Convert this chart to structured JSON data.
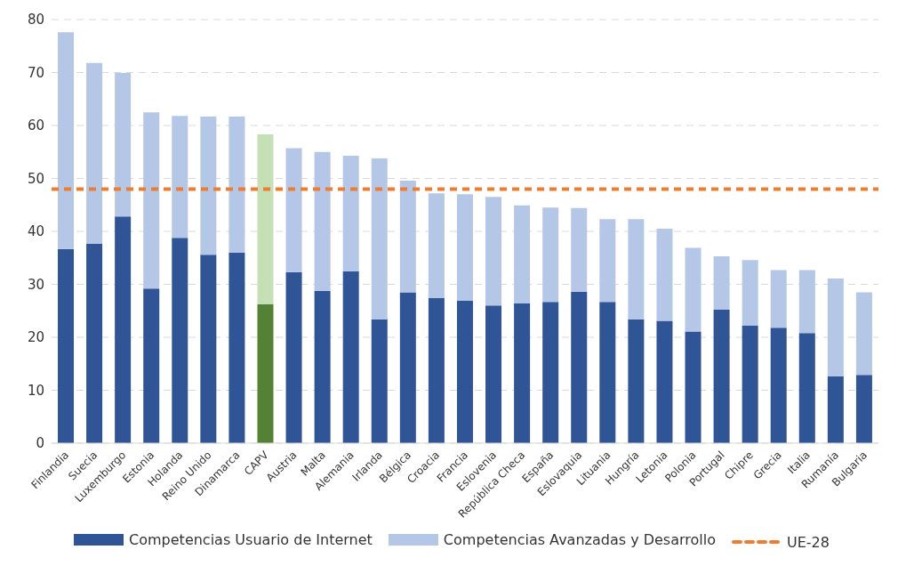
{
  "chart_data": {
    "type": "bar",
    "stacked": true,
    "categories": [
      "Finlandia",
      "Suecia",
      "Luxemburgo",
      "Estonia",
      "Holanda",
      "Reino Unido",
      "Dinamarca",
      "CAPV",
      "Austria",
      "Malta",
      "Alemania",
      "Irlanda",
      "Bélgica",
      "Croacia",
      "Francia",
      "Eslovenia",
      "República Checa",
      "España",
      "Eslovaquia",
      "Lituania",
      "Hungría",
      "Letonia",
      "Polonia",
      "Portugal",
      "Chipre",
      "Grecia",
      "Italia",
      "Rumanía",
      "Bulgaria"
    ],
    "series": [
      {
        "name": "Competencias Usuario de Internet",
        "color": "#2f5597",
        "colors": [
          "#2f5597",
          "#2f5597",
          "#2f5597",
          "#2f5597",
          "#2f5597",
          "#2f5597",
          "#2f5597",
          "#548235",
          "#2f5597",
          "#2f5597",
          "#2f5597",
          "#2f5597",
          "#2f5597",
          "#2f5597",
          "#2f5597",
          "#2f5597",
          "#2f5597",
          "#2f5597",
          "#2f5597",
          "#2f5597",
          "#2f5597",
          "#2f5597",
          "#2f5597",
          "#2f5597",
          "#2f5597",
          "#2f5597",
          "#2f5597",
          "#2f5597",
          "#2f5597"
        ],
        "values": [
          36.7,
          37.7,
          42.8,
          29.2,
          38.8,
          35.6,
          36.0,
          26.2,
          32.3,
          28.8,
          32.5,
          23.4,
          28.5,
          27.4,
          26.9,
          26.0,
          26.4,
          26.7,
          28.6,
          26.7,
          23.4,
          23.1,
          21.1,
          25.2,
          22.2,
          21.8,
          20.8,
          12.6,
          12.9
        ]
      },
      {
        "name": "Competencias Avanzadas y Desarrollo",
        "color": "#b4c7e7",
        "colors": [
          "#b4c7e7",
          "#b4c7e7",
          "#b4c7e7",
          "#b4c7e7",
          "#b4c7e7",
          "#b4c7e7",
          "#b4c7e7",
          "#c5e0b4",
          "#b4c7e7",
          "#b4c7e7",
          "#b4c7e7",
          "#b4c7e7",
          "#b4c7e7",
          "#b4c7e7",
          "#b4c7e7",
          "#b4c7e7",
          "#b4c7e7",
          "#b4c7e7",
          "#b4c7e7",
          "#b4c7e7",
          "#b4c7e7",
          "#b4c7e7",
          "#b4c7e7",
          "#b4c7e7",
          "#b4c7e7",
          "#b4c7e7",
          "#b4c7e7",
          "#b4c7e7",
          "#b4c7e7"
        ],
        "values": [
          40.9,
          34.1,
          27.1,
          33.3,
          23.0,
          26.1,
          25.7,
          32.1,
          23.4,
          26.2,
          21.8,
          30.4,
          21.1,
          19.8,
          20.1,
          20.5,
          18.5,
          17.8,
          15.8,
          15.6,
          18.9,
          17.4,
          15.8,
          10.1,
          12.4,
          10.9,
          11.9,
          18.5,
          15.6
        ]
      }
    ],
    "ref_lines": [
      {
        "axis": "y",
        "value": 48,
        "label": "UE-28",
        "color": "#ed7d31",
        "line_style": "dashed"
      }
    ],
    "ylim": [
      0,
      80
    ],
    "yticks": [
      0,
      10,
      20,
      30,
      40,
      50,
      60,
      70,
      80
    ],
    "grid": "y",
    "legend": "bottom"
  }
}
